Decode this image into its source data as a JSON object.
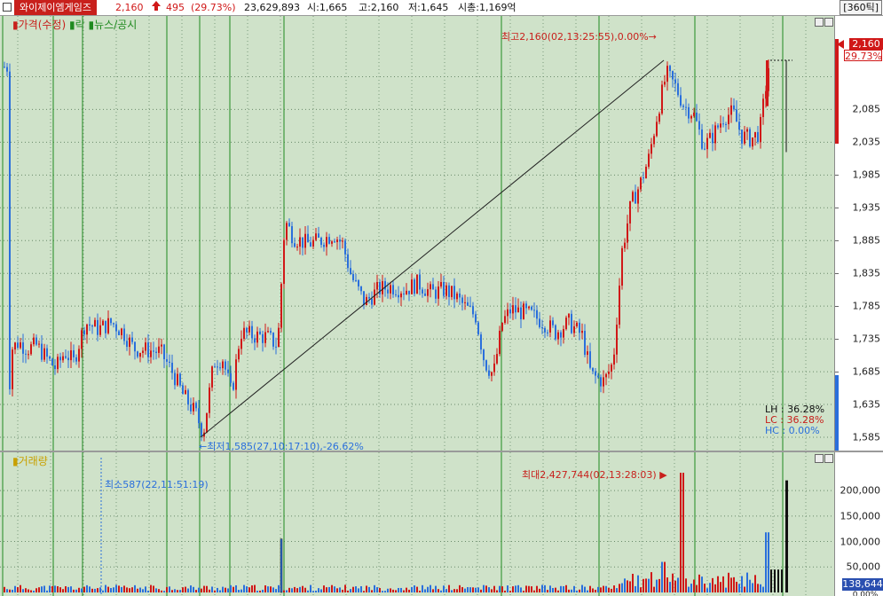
{
  "header": {
    "stock_name": "와이제이엠게임즈",
    "price": "2,160",
    "change_arrow": "up-arrow-icon",
    "change": "495",
    "change_pct": "(29.73%)",
    "volume": "23,629,893",
    "open": "시:1,665",
    "high": "고:2,160",
    "low": "저:1,645",
    "market_cap": "시총:1,169억",
    "period": "[360틱]"
  },
  "price_pane": {
    "legend": {
      "price": "가격(수정)",
      "rak": "락",
      "news": "뉴스/공시"
    },
    "high_marker": "최고2,160(02,13:25:55),0.00%→",
    "low_marker": "←최저1,585(27,10:17:10),-26.62%",
    "current_badge": "2,160",
    "current_pct": "29.73%",
    "stats": [
      {
        "label": "LH",
        "value": "36.28%"
      },
      {
        "label": "LC",
        "value": "36.28%"
      },
      {
        "label": "HC",
        "value": "0.00%"
      }
    ],
    "axis_ticks": [
      "2,085",
      "2,035",
      "1,985",
      "1,935",
      "1,885",
      "1,835",
      "1,785",
      "1,735",
      "1,685",
      "1,635",
      "1,585"
    ],
    "colors": {
      "up": "#d01818",
      "down": "#2a6fdc",
      "bg": "#cfe2c9",
      "vline": "#1f8a1f"
    }
  },
  "volume_pane": {
    "legend": "거래량",
    "min_marker": "최소587(22,11:51:19)",
    "max_marker": "최대2,427,744(02,13:28:03) ▶",
    "axis_ticks": [
      "200,000",
      "150,000",
      "100,000",
      "50,000"
    ],
    "current_badge": "138,644",
    "badge_sub": "0.00%"
  },
  "chart_data": {
    "type": "candlestick",
    "price_range": [
      1570,
      2180
    ],
    "volume_range": [
      0,
      235000
    ],
    "low_point": 1585,
    "high_point": 2160
  }
}
